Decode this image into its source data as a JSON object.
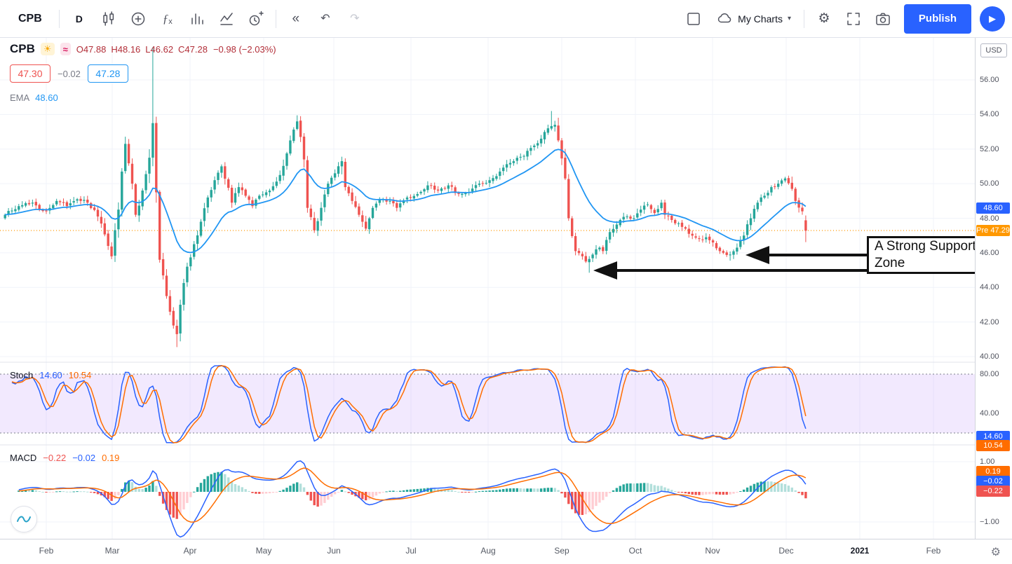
{
  "toolbar": {
    "symbol": "CPB",
    "interval": "D",
    "my_charts": "My Charts",
    "publish_label": "Publish"
  },
  "glyphs": {
    "fx_f": "ƒ",
    "fx_x": "x",
    "rewind": "«",
    "undo": "↶",
    "redo": "↷",
    "gear": "⚙",
    "caret": "▾",
    "play": "▶",
    "sun": "☀",
    "wave": "≈"
  },
  "main_legend": {
    "symbol": "CPB",
    "ohlc": {
      "o": "O47.88",
      "h": "H48.16",
      "l": "L46.62",
      "c": "C47.28"
    },
    "change": "−0.98 (−2.03%)",
    "sell": "47.30",
    "spread": "−0.02",
    "buy": "47.28",
    "ema_label": "EMA",
    "ema_value": "48.60"
  },
  "annotation": {
    "text": "A Strong Support Zone"
  },
  "price_axis": {
    "currency": "USD",
    "ticks": [
      "56.00",
      "54.00",
      "52.00",
      "50.00",
      "48.00",
      "46.00",
      "44.00",
      "42.00",
      "40.00"
    ],
    "ema_badge": "48.60",
    "pre_badge": "Pre 47.29"
  },
  "time_axis": {
    "ticks": [
      "Feb",
      "Mar",
      "Apr",
      "May",
      "Jun",
      "Jul",
      "Aug",
      "Sep",
      "Oct",
      "Nov",
      "Dec",
      "2021",
      "Feb"
    ]
  },
  "stoch_panel": {
    "label": "Stoch",
    "k_value": "14.60",
    "d_value": "10.54",
    "ticks": [
      "80.00",
      "40.00"
    ],
    "badges": {
      "k": "14.60",
      "d": "10.54"
    }
  },
  "macd_panel": {
    "label": "MACD",
    "hist_value": "−0.22",
    "macd_value": "−0.02",
    "signal_value": "0.19",
    "ticks": {
      "top": "1.00",
      "bottom": "−1.00"
    },
    "badges": {
      "signal": "0.19",
      "macd": "−0.02",
      "hist": "−0.22"
    }
  },
  "chart_data": {
    "type": "candlestick",
    "symbol": "CPB",
    "interval": "D",
    "currency": "USD",
    "title": "CPB daily chart with EMA, Stochastic and MACD",
    "price_range": [
      40,
      58.4
    ],
    "visible_months": [
      "Feb",
      "Mar",
      "Apr",
      "May",
      "Jun",
      "Jul",
      "Aug",
      "Sep",
      "Oct",
      "Nov",
      "Dec",
      "2021",
      "Feb"
    ],
    "last": {
      "open": 47.88,
      "high": 48.16,
      "low": 46.62,
      "close": 47.28,
      "change": -0.98,
      "change_pct": -2.03
    },
    "pre_market": 47.29,
    "ema_period": 20,
    "ema_last": 48.6,
    "close_waypoints": [
      [
        -12,
        48.2
      ],
      [
        -8,
        48.7
      ],
      [
        -4,
        48.9
      ],
      [
        -2,
        48.5
      ],
      [
        0,
        48.4
      ],
      [
        3,
        49.0
      ],
      [
        6,
        48.7
      ],
      [
        9,
        49.1
      ],
      [
        12,
        48.9
      ],
      [
        15,
        48.1
      ],
      [
        18,
        46.4
      ],
      [
        19,
        45.8
      ],
      [
        21,
        48.5
      ],
      [
        23,
        52.3
      ],
      [
        25,
        50.0
      ],
      [
        26,
        48.2
      ],
      [
        28,
        49.6
      ],
      [
        30,
        51.5
      ],
      [
        31,
        53.5
      ],
      [
        32,
        49.5
      ],
      [
        33,
        45.6
      ],
      [
        35,
        43.5
      ],
      [
        37,
        41.8
      ],
      [
        38,
        41.3
      ],
      [
        39,
        43.0
      ],
      [
        41,
        45.2
      ],
      [
        43,
        46.5
      ],
      [
        45,
        47.8
      ],
      [
        47,
        49.2
      ],
      [
        49,
        50.2
      ],
      [
        51,
        51.0
      ],
      [
        54,
        48.9
      ],
      [
        56,
        49.8
      ],
      [
        58,
        49.3
      ],
      [
        60,
        48.7
      ],
      [
        62,
        49.3
      ],
      [
        65,
        49.6
      ],
      [
        68,
        50.5
      ],
      [
        71,
        52.5
      ],
      [
        73,
        53.6
      ],
      [
        75,
        51.4
      ],
      [
        76,
        48.6
      ],
      [
        78,
        47.3
      ],
      [
        80,
        48.6
      ],
      [
        82,
        50.0
      ],
      [
        84,
        50.6
      ],
      [
        86,
        51.3
      ],
      [
        87,
        49.8
      ],
      [
        89,
        49.0
      ],
      [
        91,
        48.2
      ],
      [
        93,
        47.4
      ],
      [
        95,
        48.6
      ],
      [
        97,
        49.1
      ],
      [
        100,
        49.0
      ],
      [
        102,
        48.6
      ],
      [
        105,
        49.2
      ],
      [
        108,
        49.4
      ],
      [
        111,
        49.9
      ],
      [
        114,
        49.6
      ],
      [
        117,
        49.9
      ],
      [
        120,
        49.4
      ],
      [
        123,
        49.5
      ],
      [
        126,
        50.0
      ],
      [
        129,
        50.2
      ],
      [
        132,
        50.7
      ],
      [
        135,
        51.2
      ],
      [
        139,
        51.6
      ],
      [
        142,
        52.2
      ],
      [
        144,
        52.6
      ],
      [
        146,
        53.2
      ],
      [
        148,
        53.4
      ],
      [
        149,
        52.5
      ],
      [
        151,
        50.3
      ],
      [
        152,
        48.0
      ],
      [
        154,
        46.1
      ],
      [
        156,
        45.8
      ],
      [
        157,
        45.5
      ],
      [
        159,
        45.9
      ],
      [
        161,
        46.3
      ],
      [
        162,
        46.1
      ],
      [
        164,
        47.2
      ],
      [
        167,
        47.9
      ],
      [
        169,
        48.1
      ],
      [
        171,
        48.0
      ],
      [
        173,
        48.5
      ],
      [
        175,
        48.8
      ],
      [
        177,
        48.3
      ],
      [
        179,
        48.9
      ],
      [
        180,
        48.2
      ],
      [
        182,
        47.9
      ],
      [
        185,
        47.5
      ],
      [
        187,
        47.1
      ],
      [
        190,
        46.8
      ],
      [
        192,
        46.9
      ],
      [
        194,
        46.6
      ],
      [
        196,
        46.1
      ],
      [
        199,
        45.9
      ],
      [
        201,
        46.3
      ],
      [
        203,
        47.0
      ],
      [
        205,
        48.0
      ],
      [
        207,
        48.9
      ],
      [
        209,
        49.3
      ],
      [
        211,
        49.8
      ],
      [
        213,
        50.0
      ],
      [
        215,
        50.3
      ],
      [
        217,
        49.7
      ],
      [
        218,
        49.0
      ],
      [
        220,
        48.4
      ],
      [
        221,
        47.28
      ]
    ],
    "spikes": [
      {
        "day": 31,
        "high": 57.9
      },
      {
        "day": 38,
        "low": 40.55
      },
      {
        "day": 73,
        "high": 53.95
      },
      {
        "day": 147,
        "high": 54.2
      },
      {
        "day": 158,
        "low": 44.85
      },
      {
        "day": 199,
        "low": 45.55
      }
    ],
    "indicators": {
      "stochastic": {
        "k_period": 14,
        "k_last": 14.6,
        "d_last": 10.54,
        "band": [
          20,
          80
        ]
      },
      "macd": {
        "fast": 12,
        "slow": 26,
        "signal": 9,
        "hist_last": -0.22,
        "macd_last": -0.02,
        "signal_last": 0.19
      }
    },
    "colors": {
      "up": "#26a69a",
      "down": "#ef5350",
      "ema": "#2196f3",
      "stoch_k": "#2962ff",
      "stoch_d": "#ff6d00",
      "macd_line": "#2962ff",
      "macd_signal": "#ff6d00",
      "hist_up": "#26a69a",
      "hist_up_fade": "#b2dfdb",
      "hist_dn": "#ef5350",
      "hist_dn_fade": "#ffcdd2",
      "pre_line": "#ff9800"
    }
  }
}
